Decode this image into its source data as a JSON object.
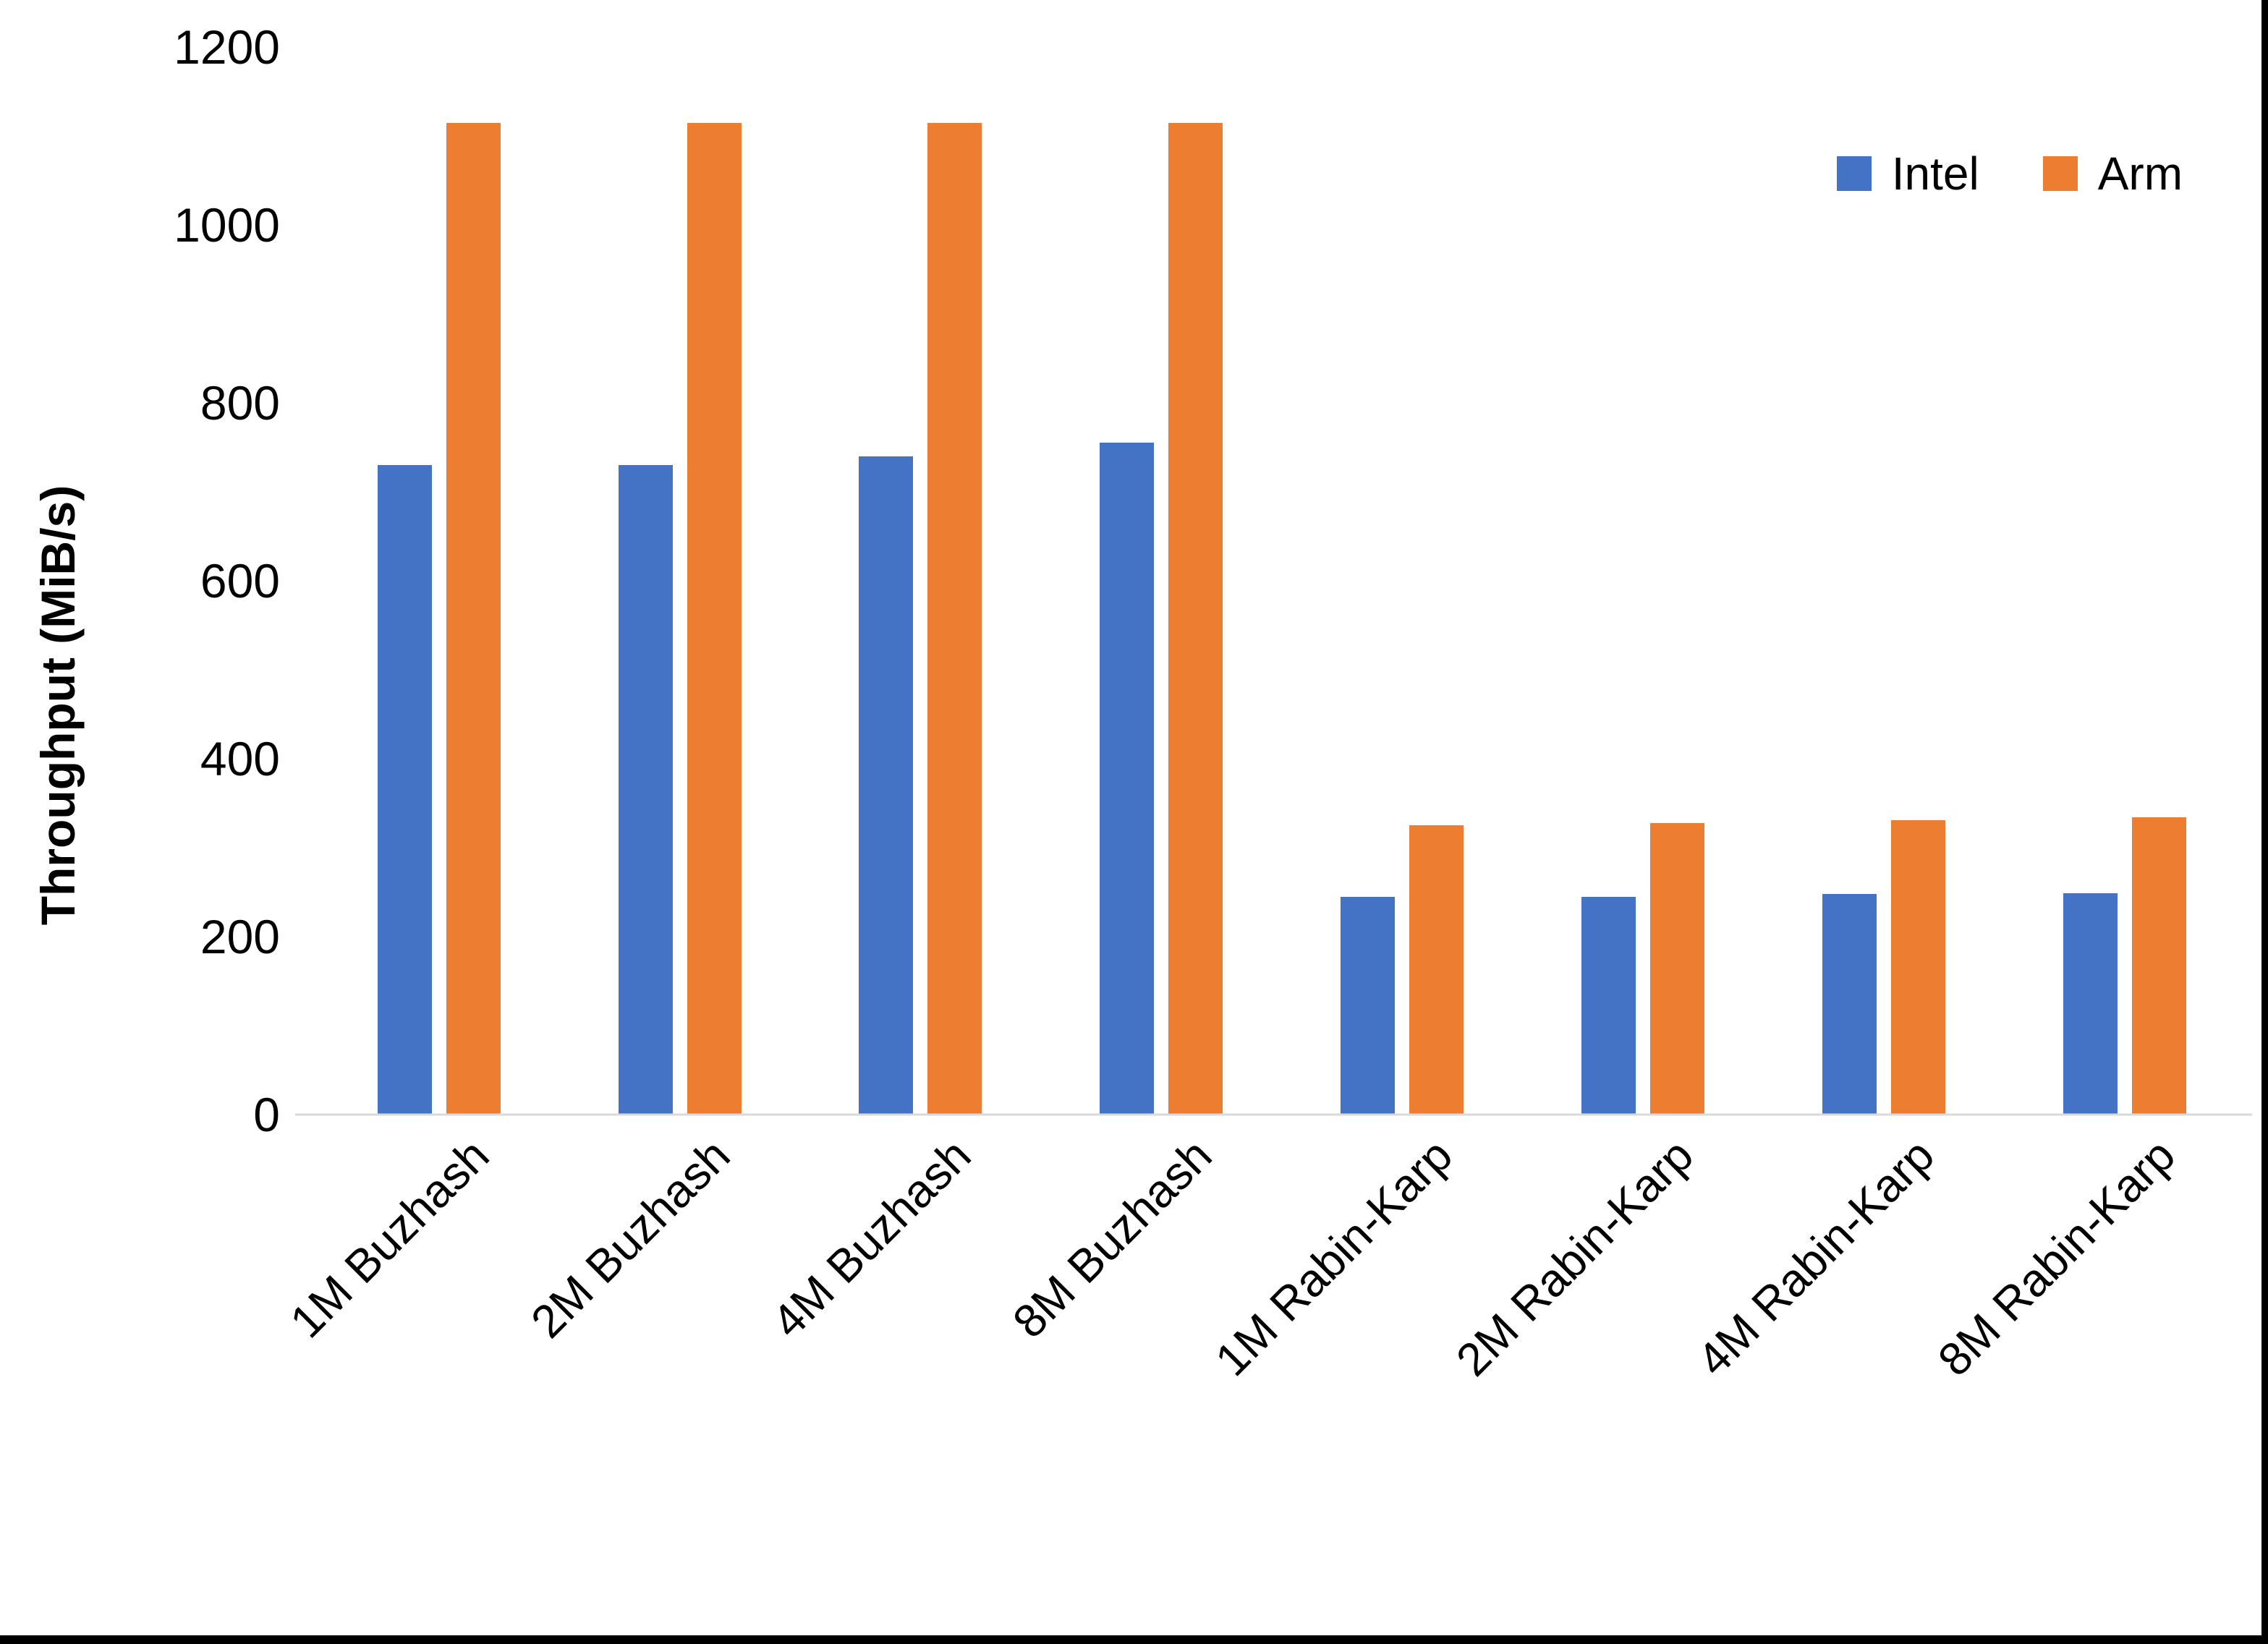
{
  "chart_data": {
    "type": "bar",
    "title": "",
    "xlabel": "",
    "ylabel": "Throughput (MiB/s)",
    "ylim": [
      0,
      1200
    ],
    "yticks": [
      0,
      200,
      400,
      600,
      800,
      1000,
      1200
    ],
    "grid": false,
    "legend_position": "top-right",
    "categories": [
      "1M Buzhash",
      "2M Buzhash",
      "4M Buzhash",
      "8M Buzhash",
      "1M Rabin-Karp",
      "2M Rabin-Karp",
      "4M Rabin-Karp",
      "8M Rabin-Karp"
    ],
    "series": [
      {
        "name": "Intel",
        "color": "#4472C4",
        "values": [
          730,
          730,
          740,
          755,
          245,
          245,
          248,
          249
        ]
      },
      {
        "name": "Arm",
        "color": "#ED7D31",
        "values": [
          1115,
          1115,
          1115,
          1115,
          325,
          328,
          331,
          334
        ]
      }
    ]
  },
  "legend": {
    "items": [
      {
        "label": "Intel",
        "color": "#4472C4"
      },
      {
        "label": "Arm",
        "color": "#ED7D31"
      }
    ]
  },
  "colors": {
    "axis_line": "#d9d9d9",
    "text": "#000000",
    "background": "#ffffff",
    "window_edge": "#000000"
  }
}
